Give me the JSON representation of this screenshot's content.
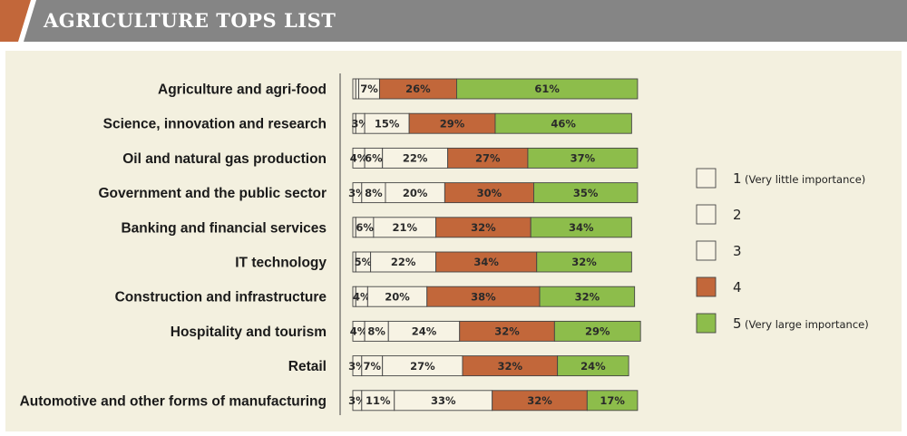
{
  "title": "AGRICULTURE TOPS LIST",
  "colors": {
    "orange": "#c2673a",
    "green": "#8dbd4b",
    "light": "#f7f3e4",
    "header_gray": "#858585",
    "panel": "#f3f0df",
    "border": "#444444"
  },
  "chart_data": {
    "type": "bar",
    "orientation": "horizontal",
    "stacked": true,
    "xlim": [
      0,
      100
    ],
    "categories": [
      "Agriculture and agri-food",
      "Science, innovation and research",
      "Oil and natural gas production",
      "Government and the public sector",
      "Banking and financial services",
      "IT technology",
      "Construction and infrastructure",
      "Hospitality and tourism",
      "Retail",
      "Automotive and other forms of manufacturing"
    ],
    "series": [
      {
        "name": "1",
        "values": [
          1,
          1,
          4,
          3,
          1,
          1,
          1,
          4,
          3,
          3
        ],
        "labels": [
          "",
          "",
          "4%",
          "3%",
          "",
          "",
          "",
          "4%",
          "3%",
          "3%"
        ]
      },
      {
        "name": "2",
        "values": [
          1,
          3,
          6,
          8,
          6,
          5,
          4,
          8,
          7,
          11
        ],
        "labels": [
          "",
          "3%",
          "6%",
          "8%",
          "6%",
          "5%",
          "4%",
          "8%",
          "7%",
          "11%"
        ]
      },
      {
        "name": "3",
        "values": [
          7,
          15,
          22,
          20,
          21,
          22,
          20,
          24,
          27,
          33
        ],
        "labels": [
          "7%",
          "15%",
          "22%",
          "20%",
          "21%",
          "22%",
          "20%",
          "24%",
          "27%",
          "33%"
        ]
      },
      {
        "name": "4",
        "values": [
          26,
          29,
          27,
          30,
          32,
          34,
          38,
          32,
          32,
          32
        ],
        "labels": [
          "26%",
          "29%",
          "27%",
          "30%",
          "32%",
          "34%",
          "38%",
          "32%",
          "32%",
          "32%"
        ]
      },
      {
        "name": "5",
        "values": [
          61,
          46,
          37,
          35,
          34,
          32,
          32,
          29,
          24,
          17
        ],
        "labels": [
          "61%",
          "46%",
          "37%",
          "35%",
          "34%",
          "32%",
          "32%",
          "29%",
          "24%",
          "17%"
        ]
      }
    ],
    "series_colors": [
      "#f7f3e4",
      "#f7f3e4",
      "#f7f3e4",
      "#c2673a",
      "#8dbd4b"
    ],
    "legend": {
      "position": "right",
      "items": [
        {
          "label": "1",
          "sub": "(Very little importance)"
        },
        {
          "label": "2",
          "sub": ""
        },
        {
          "label": "3",
          "sub": ""
        },
        {
          "label": "4",
          "sub": ""
        },
        {
          "label": "5",
          "sub": "(Very large importance)"
        }
      ]
    }
  }
}
